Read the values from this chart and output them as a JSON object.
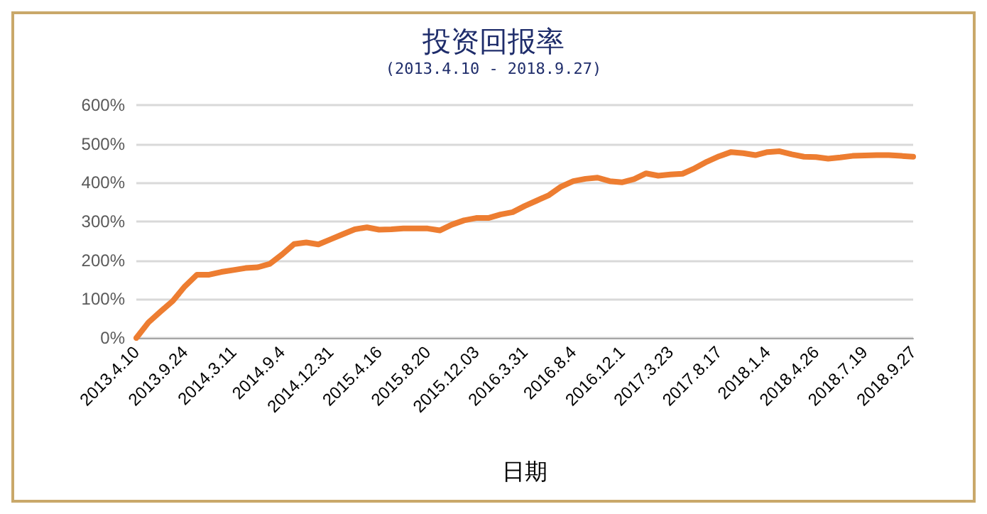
{
  "chart_data": {
    "type": "line",
    "title": "投资回报率",
    "subtitle": "(2013.4.10 - 2018.9.27)",
    "xlabel": "日期",
    "categories": [
      "2013.4.10",
      null,
      null,
      null,
      "2013.9.24",
      null,
      null,
      null,
      "2014.3.11",
      null,
      null,
      null,
      "2014.9.4",
      null,
      null,
      null,
      "2014.12.31",
      null,
      null,
      null,
      "2015.4.16",
      null,
      null,
      null,
      "2015.8.20",
      null,
      null,
      null,
      "2015.12.03",
      null,
      null,
      null,
      "2016.3.31",
      null,
      null,
      null,
      "2016.8.4",
      null,
      null,
      null,
      "2016.12.1",
      null,
      null,
      null,
      "2017.3.23",
      null,
      null,
      null,
      "2017.8.17",
      null,
      null,
      null,
      "2018.1.4",
      null,
      null,
      null,
      "2018.4.26",
      null,
      null,
      null,
      "2018.7.19",
      null,
      null,
      null,
      "2018.9.27"
    ],
    "series": [
      {
        "color": "#ed7d31",
        "values": [
          0,
          40,
          68,
          95,
          133,
          163,
          163,
          170,
          175,
          180,
          182,
          191,
          215,
          242,
          246,
          241,
          254,
          267,
          280,
          285,
          279,
          280,
          282,
          282,
          282,
          277,
          292,
          303,
          309,
          309,
          318,
          324,
          340,
          354,
          368,
          390,
          404,
          410,
          413,
          404,
          401,
          409,
          424,
          418,
          421,
          423,
          437,
          454,
          468,
          479,
          476,
          471,
          479,
          481,
          473,
          467,
          466,
          462,
          465,
          469,
          470,
          471,
          471,
          469,
          467
        ]
      }
    ],
    "ylim": [
      0,
      600
    ],
    "yticks": [
      {
        "value": 0,
        "label": "0%"
      },
      {
        "value": 100,
        "label": "100%"
      },
      {
        "value": 200,
        "label": "200%"
      },
      {
        "value": 300,
        "label": "300%"
      },
      {
        "value": 400,
        "label": "400%"
      },
      {
        "value": 500,
        "label": "500%"
      },
      {
        "value": 600,
        "label": "600%"
      }
    ],
    "grid": "y",
    "marker": "none",
    "line_style": "solid"
  }
}
